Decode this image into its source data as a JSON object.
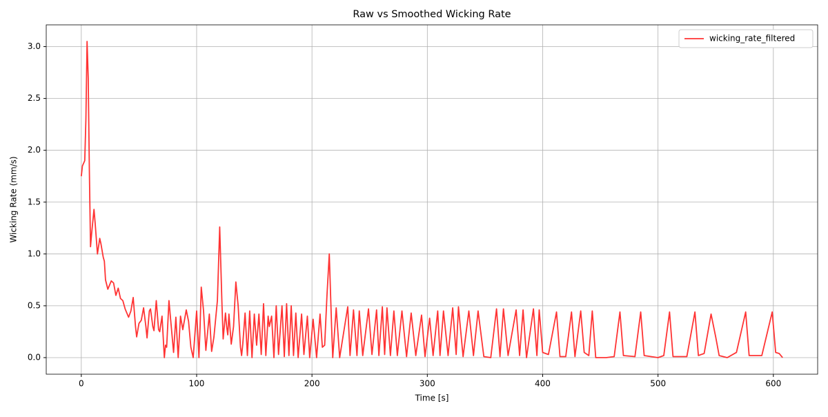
{
  "chart_data": {
    "type": "line",
    "title": "Raw vs Smoothed Wicking Rate",
    "x_label": "Time [s]",
    "y_label": "Wicking Rate (mm/s)",
    "x": [
      0,
      1,
      3,
      4,
      5,
      6,
      7,
      8,
      9,
      11,
      12,
      14,
      16,
      17,
      19,
      20,
      21,
      23,
      26,
      28,
      30,
      32,
      34,
      36,
      38,
      41,
      43,
      45,
      47,
      48,
      50,
      52,
      54,
      56,
      57,
      59,
      60,
      62,
      63,
      65,
      67,
      68,
      70,
      72,
      73,
      74,
      76,
      78,
      80,
      82,
      84,
      86,
      88,
      91,
      93,
      95,
      97,
      98,
      100,
      102,
      103,
      104,
      106,
      108,
      111,
      113,
      115,
      118,
      120,
      122,
      123,
      125,
      126,
      127,
      128,
      130,
      132,
      134,
      136,
      138,
      139,
      140,
      142,
      144,
      146,
      148,
      150,
      152,
      154,
      156,
      158,
      160,
      162,
      163,
      165,
      167,
      169,
      171,
      174,
      176,
      178,
      180,
      182,
      184,
      186,
      188,
      191,
      193,
      196,
      198,
      201,
      204,
      207,
      209,
      211,
      213,
      215,
      217,
      218,
      221,
      224,
      231,
      233,
      236,
      239,
      241,
      244,
      249,
      252,
      256,
      258,
      261,
      263,
      265,
      268,
      271,
      274,
      278,
      282,
      286,
      290,
      295,
      298,
      302,
      305,
      309,
      311,
      314,
      318,
      322,
      325,
      327,
      331,
      336,
      340,
      344,
      349,
      355,
      360,
      363,
      366,
      370,
      377,
      380,
      383,
      386,
      392,
      395,
      397,
      400,
      405,
      412,
      415,
      420,
      425,
      428,
      433,
      436,
      440,
      443,
      446,
      455,
      462,
      467,
      470,
      480,
      485,
      488,
      500,
      505,
      510,
      513,
      525,
      532,
      535,
      540,
      546,
      550,
      553,
      560,
      568,
      576,
      579,
      590,
      599,
      602,
      605,
      608
    ],
    "series": [
      {
        "name": "wicking_rate_filtered",
        "color": "#ff3333",
        "values": [
          1.75,
          1.85,
          1.9,
          2.3,
          3.05,
          2.7,
          1.8,
          1.07,
          1.2,
          1.43,
          1.3,
          1.0,
          1.15,
          1.1,
          0.97,
          0.93,
          0.75,
          0.66,
          0.74,
          0.72,
          0.6,
          0.67,
          0.57,
          0.55,
          0.47,
          0.39,
          0.45,
          0.58,
          0.3,
          0.2,
          0.33,
          0.36,
          0.48,
          0.3,
          0.19,
          0.45,
          0.47,
          0.3,
          0.26,
          0.55,
          0.27,
          0.25,
          0.4,
          0.0,
          0.12,
          0.1,
          0.55,
          0.3,
          0.05,
          0.39,
          0.0,
          0.4,
          0.27,
          0.46,
          0.35,
          0.1,
          0.0,
          0.15,
          0.45,
          0.0,
          0.3,
          0.68,
          0.45,
          0.07,
          0.42,
          0.06,
          0.2,
          0.55,
          1.26,
          0.5,
          0.18,
          0.43,
          0.3,
          0.22,
          0.42,
          0.13,
          0.3,
          0.73,
          0.5,
          0.1,
          0.02,
          0.13,
          0.43,
          0.02,
          0.45,
          0.0,
          0.42,
          0.12,
          0.42,
          0.03,
          0.52,
          0.02,
          0.4,
          0.3,
          0.4,
          0.0,
          0.5,
          0.03,
          0.5,
          0.01,
          0.52,
          0.02,
          0.5,
          0.02,
          0.43,
          0.0,
          0.42,
          0.03,
          0.4,
          0.0,
          0.37,
          0.0,
          0.42,
          0.1,
          0.12,
          0.6,
          1.0,
          0.3,
          0.0,
          0.48,
          0.0,
          0.49,
          0.02,
          0.46,
          0.02,
          0.45,
          0.02,
          0.47,
          0.03,
          0.46,
          0.02,
          0.49,
          0.03,
          0.48,
          0.02,
          0.45,
          0.02,
          0.45,
          0.01,
          0.43,
          0.02,
          0.41,
          0.01,
          0.38,
          0.02,
          0.45,
          0.02,
          0.45,
          0.02,
          0.48,
          0.03,
          0.49,
          0.01,
          0.45,
          0.02,
          0.45,
          0.01,
          0.0,
          0.47,
          0.01,
          0.47,
          0.02,
          0.46,
          0.02,
          0.46,
          0.0,
          0.47,
          0.02,
          0.46,
          0.05,
          0.03,
          0.44,
          0.01,
          0.01,
          0.44,
          0.01,
          0.45,
          0.05,
          0.02,
          0.45,
          0.0,
          0.0,
          0.01,
          0.44,
          0.02,
          0.01,
          0.44,
          0.02,
          0.0,
          0.02,
          0.44,
          0.01,
          0.01,
          0.44,
          0.02,
          0.04,
          0.42,
          0.2,
          0.02,
          0.0,
          0.05,
          0.44,
          0.02,
          0.02,
          0.44,
          0.05,
          0.04,
          0.0
        ]
      }
    ],
    "xlim": [
      -30.4,
      638.4
    ],
    "ylim": [
      -0.16,
      3.21
    ],
    "xticks": [
      0,
      100,
      200,
      300,
      400,
      500,
      600
    ],
    "yticks": [
      {
        "value": 0,
        "label": "0.0"
      },
      0.5,
      {
        "value": 1,
        "label": "1.0"
      },
      1.5,
      {
        "value": 2,
        "label": "2.0"
      },
      2.5,
      {
        "value": 3,
        "label": "3.0"
      }
    ],
    "grid": true,
    "legend": "upper right"
  }
}
